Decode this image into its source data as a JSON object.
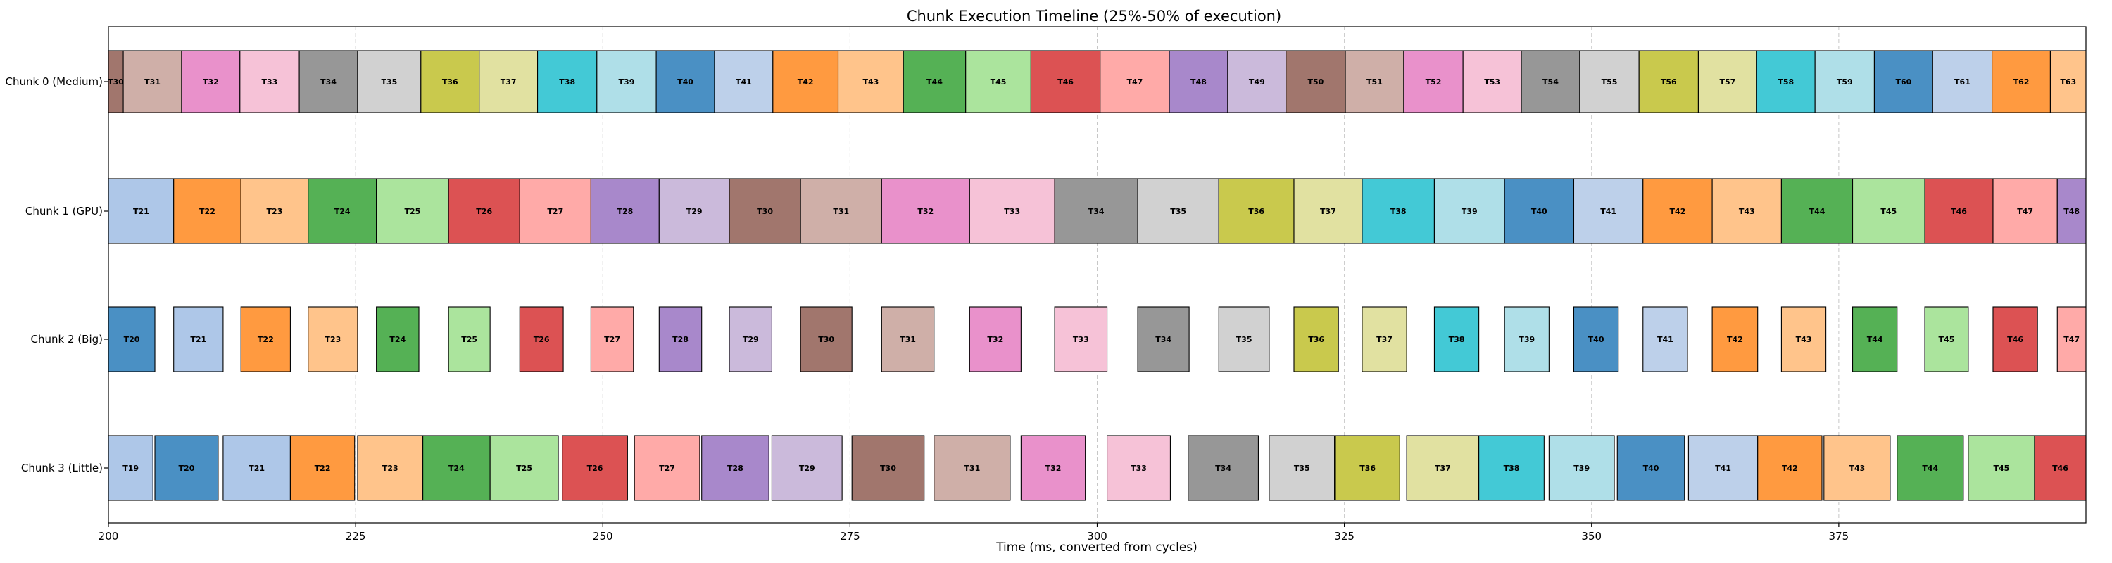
{
  "chart_data": {
    "type": "bar",
    "subtype": "gantt",
    "title": "Chunk Execution Timeline (25%-50% of execution)",
    "xlabel": "Time (ms, converted from cycles)",
    "ylabel": "",
    "xlim": [
      200,
      400
    ],
    "x_ticks": [
      200,
      225,
      250,
      275,
      300,
      325,
      350,
      375
    ],
    "grid": "vertical dashed",
    "lanes": [
      "Chunk 0 (Medium)",
      "Chunk 1 (GPU)",
      "Chunk 2 (Big)",
      "Chunk 3 (Little)"
    ],
    "task_colors": {
      "T19": "#aec7e8",
      "T20": "#4a90c4",
      "T21": "#aec7e8",
      "T22": "#ff9a40",
      "T23": "#ffc48b",
      "T24": "#55b155",
      "T25": "#abe49d",
      "T26": "#dc5253",
      "T27": "#ffaaa8",
      "T28": "#a888cb",
      "T29": "#cbbadb",
      "T30": "#a1766d",
      "T31": "#cfafa8",
      "T32": "#e991cb",
      "T33": "#f6c2d7",
      "T34": "#979797",
      "T35": "#d1d1d1",
      "T36": "#c9c94d",
      "T37": "#e1e1a1",
      "T38": "#43c9d6",
      "T39": "#afdfe8",
      "T40": "#4a90c4",
      "T41": "#bdd0ea",
      "T42": "#ff9a40",
      "T43": "#ffc48b",
      "T44": "#55b155",
      "T45": "#abe49d",
      "T46": "#dc5253",
      "T47": "#ffaaa8",
      "T48": "#a888cb",
      "T49": "#cbbadb",
      "T50": "#a1766d",
      "T51": "#cfafa8",
      "T52": "#e991cb",
      "T53": "#f6c2d7",
      "T54": "#979797",
      "T55": "#d1d1d1",
      "T56": "#c9c94d",
      "T57": "#e1e1a1",
      "T58": "#43c9d6",
      "T59": "#afdfe8",
      "T60": "#4a90c4",
      "T61": "#bdd0ea",
      "T62": "#ff9a40",
      "T63": "#ffc48b"
    },
    "tasks": [
      {
        "lane": 0,
        "label": "T30",
        "start": 198.0,
        "end": 201.5
      },
      {
        "lane": 0,
        "label": "T31",
        "start": 201.5,
        "end": 207.4
      },
      {
        "lane": 0,
        "label": "T32",
        "start": 207.4,
        "end": 213.3
      },
      {
        "lane": 0,
        "label": "T33",
        "start": 213.3,
        "end": 219.3
      },
      {
        "lane": 0,
        "label": "T34",
        "start": 219.3,
        "end": 225.2
      },
      {
        "lane": 0,
        "label": "T35",
        "start": 225.2,
        "end": 231.6
      },
      {
        "lane": 0,
        "label": "T36",
        "start": 231.6,
        "end": 237.5
      },
      {
        "lane": 0,
        "label": "T37",
        "start": 237.5,
        "end": 243.4
      },
      {
        "lane": 0,
        "label": "T38",
        "start": 243.4,
        "end": 249.4
      },
      {
        "lane": 0,
        "label": "T39",
        "start": 249.4,
        "end": 255.4
      },
      {
        "lane": 0,
        "label": "T40",
        "start": 255.4,
        "end": 261.3
      },
      {
        "lane": 0,
        "label": "T41",
        "start": 261.3,
        "end": 267.2
      },
      {
        "lane": 0,
        "label": "T42",
        "start": 267.2,
        "end": 273.8
      },
      {
        "lane": 0,
        "label": "T43",
        "start": 273.8,
        "end": 280.4
      },
      {
        "lane": 0,
        "label": "T44",
        "start": 280.4,
        "end": 286.7
      },
      {
        "lane": 0,
        "label": "T45",
        "start": 286.7,
        "end": 293.3
      },
      {
        "lane": 0,
        "label": "T46",
        "start": 293.3,
        "end": 300.3
      },
      {
        "lane": 0,
        "label": "T47",
        "start": 300.3,
        "end": 307.3
      },
      {
        "lane": 0,
        "label": "T48",
        "start": 307.3,
        "end": 313.2
      },
      {
        "lane": 0,
        "label": "T49",
        "start": 313.2,
        "end": 319.1
      },
      {
        "lane": 0,
        "label": "T50",
        "start": 319.1,
        "end": 325.1
      },
      {
        "lane": 0,
        "label": "T51",
        "start": 325.1,
        "end": 331.0
      },
      {
        "lane": 0,
        "label": "T52",
        "start": 331.0,
        "end": 337.0
      },
      {
        "lane": 0,
        "label": "T53",
        "start": 337.0,
        "end": 342.9
      },
      {
        "lane": 0,
        "label": "T54",
        "start": 342.9,
        "end": 348.8
      },
      {
        "lane": 0,
        "label": "T55",
        "start": 348.8,
        "end": 354.8
      },
      {
        "lane": 0,
        "label": "T56",
        "start": 354.8,
        "end": 360.8
      },
      {
        "lane": 0,
        "label": "T57",
        "start": 360.8,
        "end": 366.7
      },
      {
        "lane": 0,
        "label": "T58",
        "start": 366.7,
        "end": 372.6
      },
      {
        "lane": 0,
        "label": "T59",
        "start": 372.6,
        "end": 378.6
      },
      {
        "lane": 0,
        "label": "T60",
        "start": 378.6,
        "end": 384.5
      },
      {
        "lane": 0,
        "label": "T61",
        "start": 384.5,
        "end": 390.5
      },
      {
        "lane": 0,
        "label": "T62",
        "start": 390.5,
        "end": 396.4
      },
      {
        "lane": 0,
        "label": "T63",
        "start": 396.4,
        "end": 402.0
      },
      {
        "lane": 1,
        "label": "T21",
        "start": 200.0,
        "end": 206.6
      },
      {
        "lane": 1,
        "label": "T22",
        "start": 206.6,
        "end": 213.4
      },
      {
        "lane": 1,
        "label": "T23",
        "start": 213.4,
        "end": 220.2
      },
      {
        "lane": 1,
        "label": "T24",
        "start": 220.2,
        "end": 227.1
      },
      {
        "lane": 1,
        "label": "T25",
        "start": 227.1,
        "end": 234.4
      },
      {
        "lane": 1,
        "label": "T26",
        "start": 234.4,
        "end": 241.6
      },
      {
        "lane": 1,
        "label": "T27",
        "start": 241.6,
        "end": 248.8
      },
      {
        "lane": 1,
        "label": "T28",
        "start": 248.8,
        "end": 255.7
      },
      {
        "lane": 1,
        "label": "T29",
        "start": 255.7,
        "end": 262.8
      },
      {
        "lane": 1,
        "label": "T30",
        "start": 262.8,
        "end": 270.0
      },
      {
        "lane": 1,
        "label": "T31",
        "start": 270.0,
        "end": 278.2
      },
      {
        "lane": 1,
        "label": "T32",
        "start": 278.2,
        "end": 287.1
      },
      {
        "lane": 1,
        "label": "T33",
        "start": 287.1,
        "end": 295.7
      },
      {
        "lane": 1,
        "label": "T34",
        "start": 295.7,
        "end": 304.1
      },
      {
        "lane": 1,
        "label": "T35",
        "start": 304.1,
        "end": 312.3
      },
      {
        "lane": 1,
        "label": "T36",
        "start": 312.3,
        "end": 319.9
      },
      {
        "lane": 1,
        "label": "T37",
        "start": 319.9,
        "end": 326.8
      },
      {
        "lane": 1,
        "label": "T38",
        "start": 326.8,
        "end": 334.1
      },
      {
        "lane": 1,
        "label": "T39",
        "start": 334.1,
        "end": 341.2
      },
      {
        "lane": 1,
        "label": "T40",
        "start": 341.2,
        "end": 348.2
      },
      {
        "lane": 1,
        "label": "T41",
        "start": 348.2,
        "end": 355.2
      },
      {
        "lane": 1,
        "label": "T42",
        "start": 355.2,
        "end": 362.2
      },
      {
        "lane": 1,
        "label": "T43",
        "start": 362.2,
        "end": 369.2
      },
      {
        "lane": 1,
        "label": "T44",
        "start": 369.2,
        "end": 376.4
      },
      {
        "lane": 1,
        "label": "T45",
        "start": 376.4,
        "end": 383.7
      },
      {
        "lane": 1,
        "label": "T46",
        "start": 383.7,
        "end": 390.6
      },
      {
        "lane": 1,
        "label": "T47",
        "start": 390.6,
        "end": 397.1
      },
      {
        "lane": 1,
        "label": "T48",
        "start": 397.1,
        "end": 402.0
      },
      {
        "lane": 2,
        "label": "T20",
        "start": 200.0,
        "end": 204.7
      },
      {
        "lane": 2,
        "label": "T21",
        "start": 206.6,
        "end": 211.6
      },
      {
        "lane": 2,
        "label": "T22",
        "start": 213.4,
        "end": 218.4
      },
      {
        "lane": 2,
        "label": "T23",
        "start": 220.2,
        "end": 225.2
      },
      {
        "lane": 2,
        "label": "T24",
        "start": 227.1,
        "end": 231.4
      },
      {
        "lane": 2,
        "label": "T25",
        "start": 234.4,
        "end": 238.6
      },
      {
        "lane": 2,
        "label": "T26",
        "start": 241.6,
        "end": 246.0
      },
      {
        "lane": 2,
        "label": "T27",
        "start": 248.8,
        "end": 253.1
      },
      {
        "lane": 2,
        "label": "T28",
        "start": 255.7,
        "end": 260.0
      },
      {
        "lane": 2,
        "label": "T29",
        "start": 262.8,
        "end": 267.1
      },
      {
        "lane": 2,
        "label": "T30",
        "start": 270.0,
        "end": 275.2
      },
      {
        "lane": 2,
        "label": "T31",
        "start": 278.2,
        "end": 283.5
      },
      {
        "lane": 2,
        "label": "T32",
        "start": 287.1,
        "end": 292.3
      },
      {
        "lane": 2,
        "label": "T33",
        "start": 295.7,
        "end": 301.0
      },
      {
        "lane": 2,
        "label": "T34",
        "start": 304.1,
        "end": 309.3
      },
      {
        "lane": 2,
        "label": "T35",
        "start": 312.3,
        "end": 317.4
      },
      {
        "lane": 2,
        "label": "T36",
        "start": 319.9,
        "end": 324.4
      },
      {
        "lane": 2,
        "label": "T37",
        "start": 326.8,
        "end": 331.3
      },
      {
        "lane": 2,
        "label": "T38",
        "start": 334.1,
        "end": 338.6
      },
      {
        "lane": 2,
        "label": "T39",
        "start": 341.2,
        "end": 345.7
      },
      {
        "lane": 2,
        "label": "T40",
        "start": 348.2,
        "end": 352.7
      },
      {
        "lane": 2,
        "label": "T41",
        "start": 355.2,
        "end": 359.7
      },
      {
        "lane": 2,
        "label": "T42",
        "start": 362.2,
        "end": 366.8
      },
      {
        "lane": 2,
        "label": "T43",
        "start": 369.2,
        "end": 373.7
      },
      {
        "lane": 2,
        "label": "T44",
        "start": 376.4,
        "end": 380.9
      },
      {
        "lane": 2,
        "label": "T45",
        "start": 383.7,
        "end": 388.1
      },
      {
        "lane": 2,
        "label": "T46",
        "start": 390.6,
        "end": 395.1
      },
      {
        "lane": 2,
        "label": "T47",
        "start": 397.1,
        "end": 402.0
      },
      {
        "lane": 3,
        "label": "T19",
        "start": 200.0,
        "end": 204.5
      },
      {
        "lane": 3,
        "label": "T20",
        "start": 204.7,
        "end": 211.1
      },
      {
        "lane": 3,
        "label": "T21",
        "start": 211.6,
        "end": 218.4
      },
      {
        "lane": 3,
        "label": "T22",
        "start": 218.4,
        "end": 224.9
      },
      {
        "lane": 3,
        "label": "T23",
        "start": 225.2,
        "end": 231.8
      },
      {
        "lane": 3,
        "label": "T24",
        "start": 231.8,
        "end": 238.6
      },
      {
        "lane": 3,
        "label": "T25",
        "start": 238.6,
        "end": 245.5
      },
      {
        "lane": 3,
        "label": "T26",
        "start": 245.9,
        "end": 252.5
      },
      {
        "lane": 3,
        "label": "T27",
        "start": 253.2,
        "end": 259.8
      },
      {
        "lane": 3,
        "label": "T28",
        "start": 260.0,
        "end": 266.8
      },
      {
        "lane": 3,
        "label": "T29",
        "start": 267.1,
        "end": 274.2
      },
      {
        "lane": 3,
        "label": "T30",
        "start": 275.2,
        "end": 282.5
      },
      {
        "lane": 3,
        "label": "T31",
        "start": 283.5,
        "end": 291.2
      },
      {
        "lane": 3,
        "label": "T32",
        "start": 292.3,
        "end": 298.8
      },
      {
        "lane": 3,
        "label": "T33",
        "start": 301.0,
        "end": 307.4
      },
      {
        "lane": 3,
        "label": "T34",
        "start": 309.2,
        "end": 316.3
      },
      {
        "lane": 3,
        "label": "T35",
        "start": 317.4,
        "end": 324.0
      },
      {
        "lane": 3,
        "label": "T36",
        "start": 324.1,
        "end": 330.6
      },
      {
        "lane": 3,
        "label": "T37",
        "start": 331.3,
        "end": 338.6
      },
      {
        "lane": 3,
        "label": "T38",
        "start": 338.6,
        "end": 345.2
      },
      {
        "lane": 3,
        "label": "T39",
        "start": 345.7,
        "end": 352.3
      },
      {
        "lane": 3,
        "label": "T40",
        "start": 352.6,
        "end": 359.4
      },
      {
        "lane": 3,
        "label": "T41",
        "start": 359.8,
        "end": 366.8
      },
      {
        "lane": 3,
        "label": "T42",
        "start": 366.8,
        "end": 373.3
      },
      {
        "lane": 3,
        "label": "T43",
        "start": 373.5,
        "end": 380.2
      },
      {
        "lane": 3,
        "label": "T44",
        "start": 380.9,
        "end": 387.6
      },
      {
        "lane": 3,
        "label": "T45",
        "start": 388.1,
        "end": 394.8
      },
      {
        "lane": 3,
        "label": "T46",
        "start": 394.8,
        "end": 400.5
      }
    ]
  }
}
